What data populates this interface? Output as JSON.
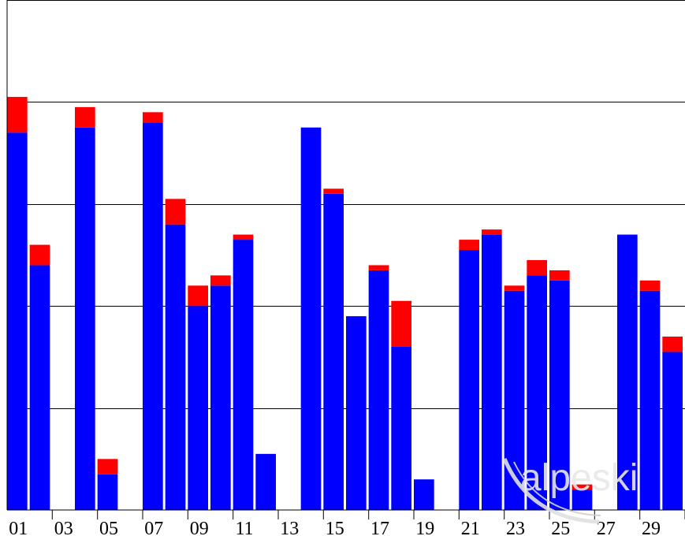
{
  "chart_data": {
    "type": "bar",
    "stacked": true,
    "categories": [
      "01",
      "02",
      "03",
      "04",
      "05",
      "06",
      "07",
      "08",
      "09",
      "10",
      "11",
      "12",
      "13",
      "14",
      "15",
      "16",
      "17",
      "18",
      "19",
      "20",
      "21",
      "22",
      "23",
      "24",
      "25",
      "26",
      "27",
      "28",
      "29",
      "30"
    ],
    "tick_labels": [
      "01",
      "03",
      "05",
      "07",
      "09",
      "11",
      "13",
      "15",
      "17",
      "19",
      "21",
      "23",
      "25",
      "27",
      "29"
    ],
    "series": [
      {
        "color": "#0000ff",
        "values": [
          37.0,
          24.0,
          0,
          37.5,
          3.5,
          0,
          38.0,
          28.0,
          20.0,
          22.0,
          26.5,
          5.5,
          0,
          37.5,
          31.0,
          19.0,
          23.5,
          16.0,
          3.0,
          0,
          25.5,
          27.0,
          21.5,
          23.0,
          22.5,
          2.0,
          0,
          27.0,
          21.5,
          15.5
        ]
      },
      {
        "color": "#ff0000",
        "values": [
          3.5,
          2.0,
          0,
          2.0,
          1.5,
          0,
          1.0,
          2.5,
          2.0,
          1.0,
          0.5,
          0,
          0,
          0,
          0.5,
          0,
          0.5,
          4.5,
          0,
          0,
          1.0,
          0.5,
          0.5,
          1.5,
          1.0,
          0.5,
          0,
          0,
          1.0,
          1.5
        ]
      }
    ],
    "ylim": [
      0,
      50
    ],
    "ygrid_step": 10,
    "grid": true,
    "watermark": "alpeski"
  }
}
